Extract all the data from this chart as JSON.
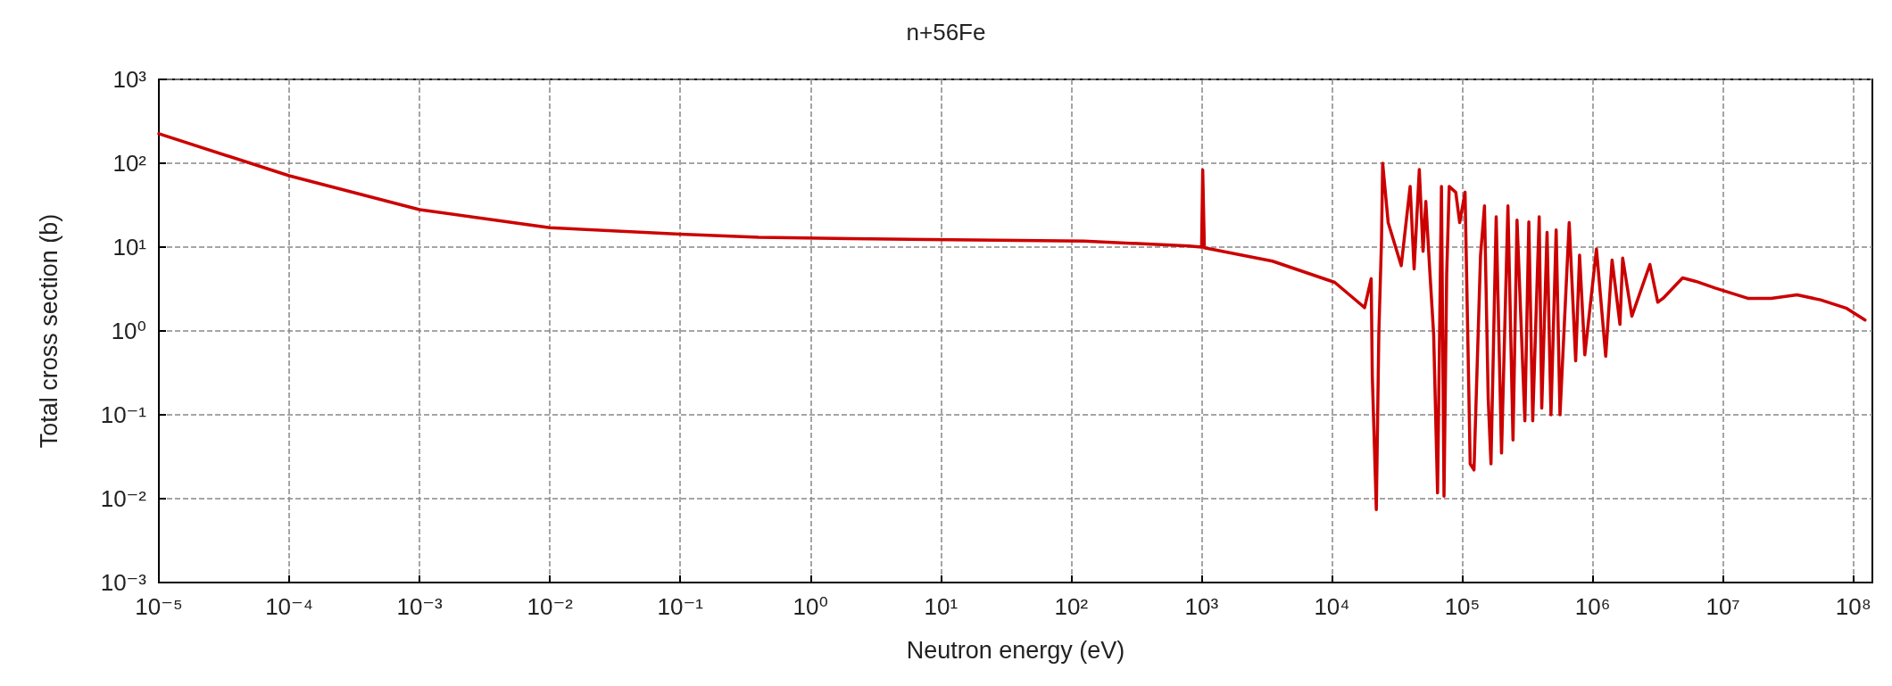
{
  "chart_data": {
    "type": "line",
    "title": "n+56Fe",
    "xlabel": "Neutron energy (eV)",
    "ylabel": "Total cross section (b)",
    "log": "xy",
    "grid": true,
    "marker": "none",
    "line_style": "solid",
    "xlim": [
      1e-05,
      140000000.0
    ],
    "ylim": [
      0.001,
      1000
    ],
    "xticks": [
      {
        "value": 1e-05,
        "label": "10⁻⁵"
      },
      {
        "value": 0.0001,
        "label": "10⁻⁴"
      },
      {
        "value": 0.001,
        "label": "10⁻³"
      },
      {
        "value": 0.01,
        "label": "10⁻²"
      },
      {
        "value": 0.1,
        "label": "10⁻¹"
      },
      {
        "value": 1,
        "label": "10⁰"
      },
      {
        "value": 10,
        "label": "10¹"
      },
      {
        "value": 100,
        "label": "10²"
      },
      {
        "value": 1000,
        "label": "10³"
      },
      {
        "value": 10000,
        "label": "10⁴"
      },
      {
        "value": 100000,
        "label": "10⁵"
      },
      {
        "value": 1000000,
        "label": "10⁶"
      },
      {
        "value": 10000000,
        "label": "10⁷"
      },
      {
        "value": 100000000,
        "label": "10⁸"
      }
    ],
    "yticks": [
      {
        "value": 0.001,
        "label": "10⁻³"
      },
      {
        "value": 0.01,
        "label": "10⁻²"
      },
      {
        "value": 0.1,
        "label": "10⁻¹"
      },
      {
        "value": 1,
        "label": "10⁰"
      },
      {
        "value": 10,
        "label": "10¹"
      },
      {
        "value": 100,
        "label": "10²"
      },
      {
        "value": 1000,
        "label": "10³"
      }
    ],
    "series": [
      {
        "color": "#cc0000",
        "x": [
          1e-05,
          0.0001,
          0.001,
          0.01,
          0.1,
          0.4,
          2,
          125,
          800,
          1000,
          1020,
          1050,
          3500,
          10500,
          17800,
          20000,
          20400,
          21900,
          22900,
          24000,
          24500,
          27000,
          34000,
          39800,
          42700,
          46800,
          50000,
          52500,
          56200,
          60300,
          64600,
          69200,
          72400,
          75900,
          79400,
          89100,
          95500,
          105000,
          115000,
          123000,
          138000,
          148000,
          158000,
          166000,
          182000,
          200000,
          224000,
          245000,
          263000,
          302000,
          324000,
          347000,
          389000,
          407000,
          447000,
          479000,
          525000,
          562000,
          661000,
          741000,
          794000,
          871000,
          1070000,
          1260000,
          1410000,
          1620000,
          1700000,
          2000000,
          2750000,
          3160000,
          3470000,
          4900000,
          6200000,
          8700000,
          15500000,
          23400000,
          37000000,
          56000000,
          89000000,
          123000000
        ],
        "values": [
          225,
          71,
          28,
          17,
          14.3,
          13.1,
          12.6,
          11.8,
          10.3,
          10,
          83,
          9.8,
          6.8,
          3.8,
          1.9,
          4.2,
          0.29,
          0.0074,
          0.95,
          12,
          100,
          19.6,
          6,
          53,
          5.5,
          84,
          8.9,
          35,
          5.5,
          0.91,
          0.0117,
          53,
          0.0107,
          4.7,
          53,
          45,
          19.6,
          45,
          0.026,
          0.022,
          7.9,
          31,
          0.16,
          0.026,
          23,
          0.035,
          31,
          0.05,
          21,
          0.085,
          20,
          0.085,
          23,
          0.12,
          15,
          0.1,
          16,
          0.1,
          19.6,
          0.44,
          8,
          0.52,
          9.5,
          0.5,
          7,
          1.2,
          7.4,
          1.5,
          6.2,
          2.2,
          2.45,
          4.3,
          3.9,
          3.25,
          2.45,
          2.45,
          2.7,
          2.35,
          1.86,
          1.35
        ]
      }
    ]
  }
}
